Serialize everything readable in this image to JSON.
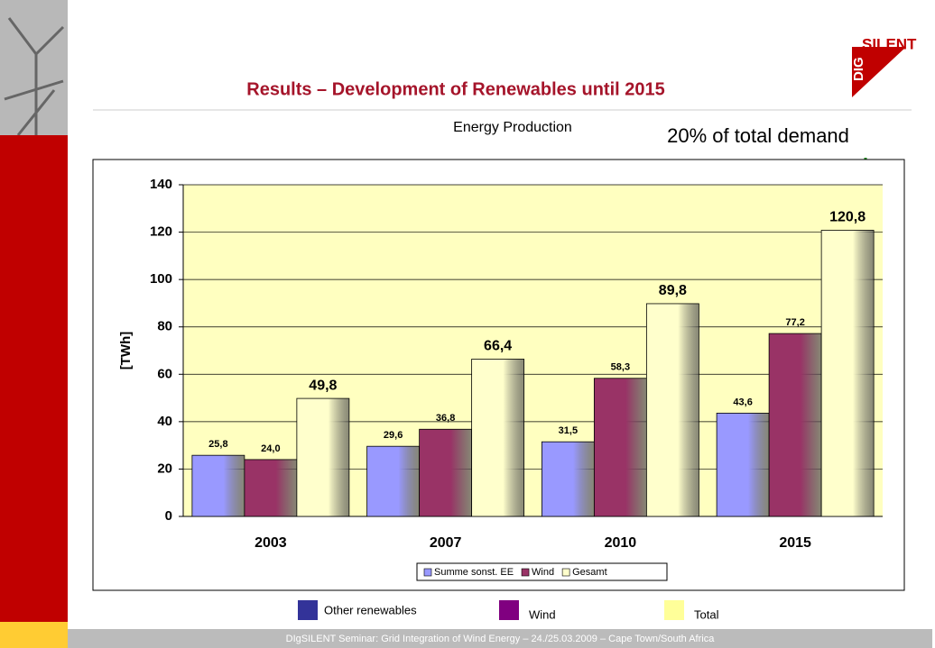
{
  "header": {
    "title": "Results – Development of Renewables until 2015",
    "logo_top": "SILENT",
    "logo_side": "DIG"
  },
  "annotations": [
    "Energy Production",
    "20% of total demand"
  ],
  "footer": "DIgSILENT Seminar: Grid Integration of Wind Energy – 24./25.03.2009 – Cape Town/South Africa",
  "chart_data": {
    "type": "bar",
    "y_label": "[TWh]",
    "categories": [
      "2003",
      "2007",
      "2010",
      "2015"
    ],
    "series": [
      {
        "name": "Summe sonst. EE",
        "color": "#9999ff",
        "values": [
          25.8,
          29.6,
          31.5,
          43.6
        ],
        "value_labels": [
          "25,8",
          "29,6",
          "31,5",
          "43,6"
        ]
      },
      {
        "name": "Wind",
        "color": "#993366",
        "values": [
          24.0,
          36.8,
          58.3,
          77.2
        ],
        "value_labels": [
          "24,0",
          "36,8",
          "58,3",
          "77,2"
        ]
      },
      {
        "name": "Gesamt",
        "color": "#ffffcc",
        "values": [
          49.8,
          66.4,
          89.8,
          120.8
        ],
        "value_labels": [
          "49,8",
          "66,4",
          "89,8",
          "120,8"
        ]
      }
    ],
    "ylim": [
      0,
      140
    ],
    "yticks": [
      0,
      20,
      40,
      60,
      80,
      100,
      120,
      140
    ],
    "grid": true
  },
  "legend2": [
    {
      "name": "Other renewables",
      "color": "#333399"
    },
    {
      "name": "Wind",
      "color": "#800080"
    },
    {
      "name": "Total",
      "color": "#ffff99"
    }
  ]
}
